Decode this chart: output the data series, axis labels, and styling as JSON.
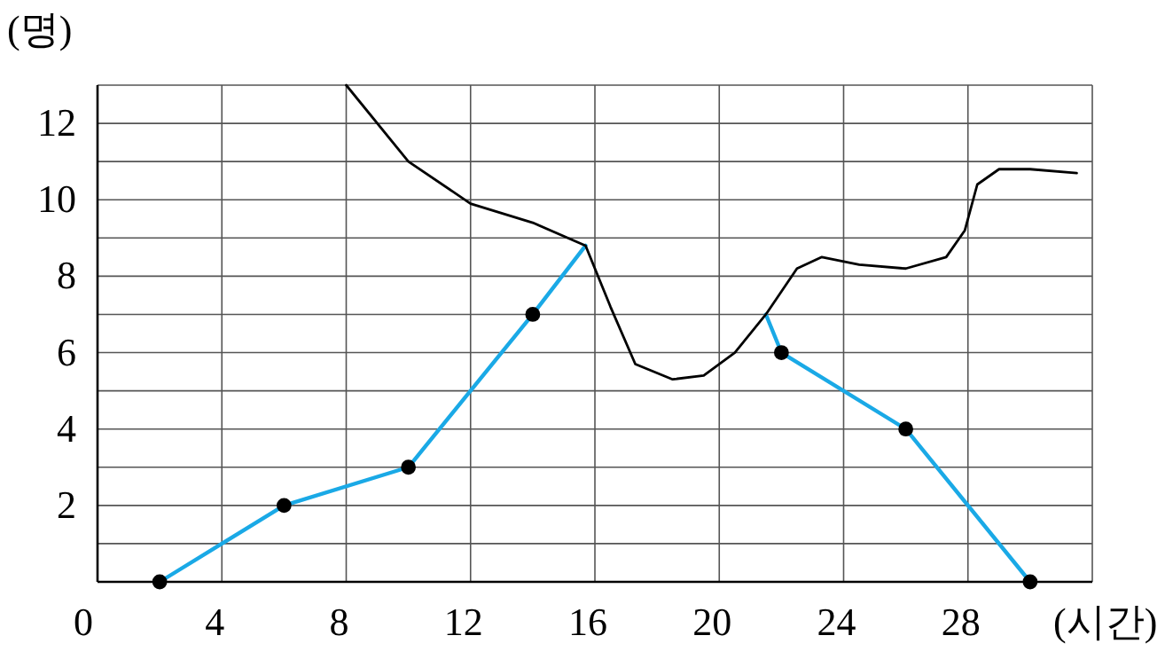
{
  "chart_data": {
    "type": "line",
    "xlabel": "(시간)",
    "ylabel": "(명)",
    "xlim": [
      0,
      32
    ],
    "ylim": [
      0,
      13
    ],
    "xticks": [
      0,
      4,
      8,
      12,
      16,
      20,
      24,
      28,
      {
        "value": 32,
        "label": null
      }
    ],
    "yticks": [
      {
        "value": 0,
        "label": null
      },
      {
        "value": 1,
        "label": null
      },
      2,
      {
        "value": 3,
        "label": null
      },
      4,
      {
        "value": 5,
        "label": null
      },
      6,
      {
        "value": 7,
        "label": null
      },
      8,
      {
        "value": 9,
        "label": null
      },
      10,
      {
        "value": 11,
        "label": null
      },
      12,
      {
        "value": 13,
        "label": null
      }
    ],
    "grid": true,
    "series": [
      {
        "type": "line",
        "color": "#1aa9e6",
        "marker": "none",
        "x": [
          2,
          6,
          10,
          14,
          15.7
        ],
        "values": [
          0,
          2,
          3,
          7,
          8.8
        ]
      },
      {
        "type": "line",
        "color": "#1aa9e6",
        "marker": "none",
        "x": [
          21.5,
          22,
          26,
          30
        ],
        "values": [
          7,
          6,
          4,
          0
        ]
      },
      {
        "type": "line",
        "color": "#000000",
        "marker": "none",
        "x": [
          8,
          10,
          12,
          14,
          15.7,
          16.5,
          17.3,
          18.5,
          19.5,
          20.5,
          21.5,
          22.5,
          23.3,
          24.5,
          26,
          27.3,
          27.9,
          28.3,
          29,
          30,
          31.5
        ],
        "values": [
          13,
          11,
          9.9,
          9.4,
          8.8,
          7.2,
          5.7,
          5.3,
          5.4,
          6,
          7,
          8.2,
          8.5,
          8.3,
          8.2,
          8.5,
          9.2,
          10.4,
          10.8,
          10.8,
          10.7
        ]
      },
      {
        "type": "scatter",
        "color": "#000000",
        "marker": "circle",
        "x": [
          2,
          6,
          10,
          14,
          22,
          26,
          30
        ],
        "values": [
          0,
          2,
          3,
          7,
          6,
          4,
          0
        ]
      }
    ]
  }
}
